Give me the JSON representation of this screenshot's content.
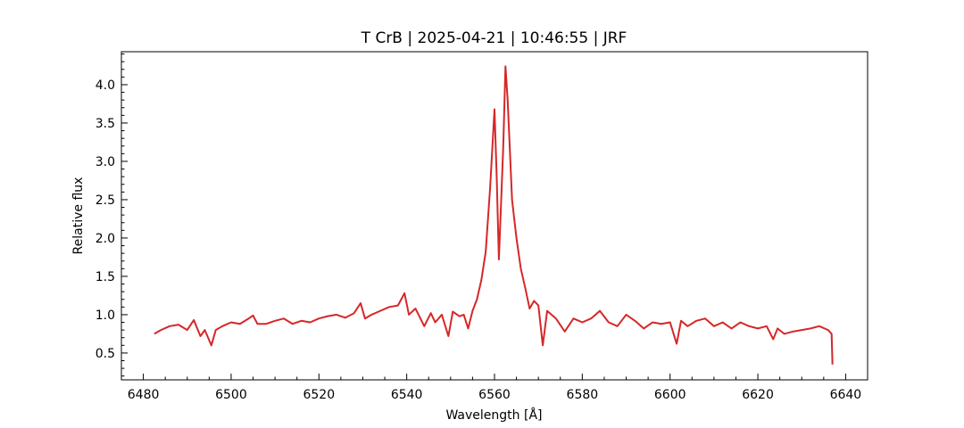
{
  "chart_data": {
    "type": "line",
    "title": "T CrB | 2025-04-21 | 10:46:55 | JRF",
    "xlabel": "Wavelength [Å]",
    "ylabel": "Relative flux",
    "xlim": [
      6475,
      6645
    ],
    "ylim": [
      0.15,
      4.43
    ],
    "xticks": [
      6480,
      6500,
      6520,
      6540,
      6560,
      6580,
      6600,
      6620,
      6640
    ],
    "yticks": [
      0.5,
      1.0,
      1.5,
      2.0,
      2.5,
      3.0,
      3.5,
      4.0
    ],
    "ytick_labels": [
      "0.5",
      "1.0",
      "1.5",
      "2.0",
      "2.5",
      "3.0",
      "3.5",
      "4.0"
    ],
    "grid": false,
    "line_color": "#d62728",
    "series": [
      {
        "x": [
          6482.5,
          6484,
          6486,
          6488,
          6490,
          6491.5,
          6493,
          6494,
          6495.5,
          6496.5,
          6498,
          6500,
          6502,
          6504,
          6505,
          6506,
          6508,
          6510,
          6512,
          6514,
          6516,
          6518,
          6520,
          6522,
          6524,
          6526,
          6528,
          6529.5,
          6530.5,
          6532,
          6534,
          6536,
          6538,
          6539.5,
          6540.5,
          6542,
          6544,
          6545.5,
          6546.5,
          6548,
          6549.5,
          6550.5,
          6552,
          6553,
          6554,
          6555,
          6556,
          6557,
          6558,
          6559,
          6560,
          6560.5,
          6561,
          6562,
          6562.5,
          6563,
          6564,
          6565,
          6566,
          6567,
          6568,
          6569,
          6570,
          6571,
          6572,
          6574,
          6576,
          6578,
          6580,
          6582,
          6584,
          6586,
          6588,
          6590,
          6592,
          6594,
          6596,
          6598,
          6600,
          6601.5,
          6602.5,
          6604,
          6606,
          6608,
          6610,
          6612,
          6614,
          6616,
          6618,
          6620,
          6622,
          6623.5,
          6624.5,
          6626,
          6628,
          6630,
          6632,
          6634,
          6636,
          6636.8,
          6637
        ],
        "y": [
          0.75,
          0.8,
          0.85,
          0.87,
          0.8,
          0.93,
          0.72,
          0.8,
          0.6,
          0.8,
          0.85,
          0.9,
          0.88,
          0.95,
          0.99,
          0.88,
          0.88,
          0.92,
          0.95,
          0.88,
          0.92,
          0.9,
          0.95,
          0.98,
          1.0,
          0.96,
          1.02,
          1.15,
          0.95,
          1.0,
          1.05,
          1.1,
          1.12,
          1.28,
          1.0,
          1.08,
          0.85,
          1.02,
          0.9,
          1.0,
          0.72,
          1.04,
          0.98,
          1.0,
          0.82,
          1.05,
          1.2,
          1.45,
          1.82,
          2.65,
          3.68,
          2.8,
          1.72,
          3.2,
          4.24,
          3.8,
          2.5,
          2.0,
          1.6,
          1.35,
          1.08,
          1.18,
          1.12,
          0.6,
          1.05,
          0.95,
          0.78,
          0.95,
          0.9,
          0.95,
          1.05,
          0.9,
          0.85,
          1.0,
          0.92,
          0.82,
          0.9,
          0.88,
          0.9,
          0.62,
          0.92,
          0.85,
          0.92,
          0.95,
          0.85,
          0.9,
          0.82,
          0.9,
          0.85,
          0.82,
          0.85,
          0.68,
          0.82,
          0.75,
          0.78,
          0.8,
          0.82,
          0.85,
          0.8,
          0.75,
          0.35
        ]
      }
    ]
  }
}
